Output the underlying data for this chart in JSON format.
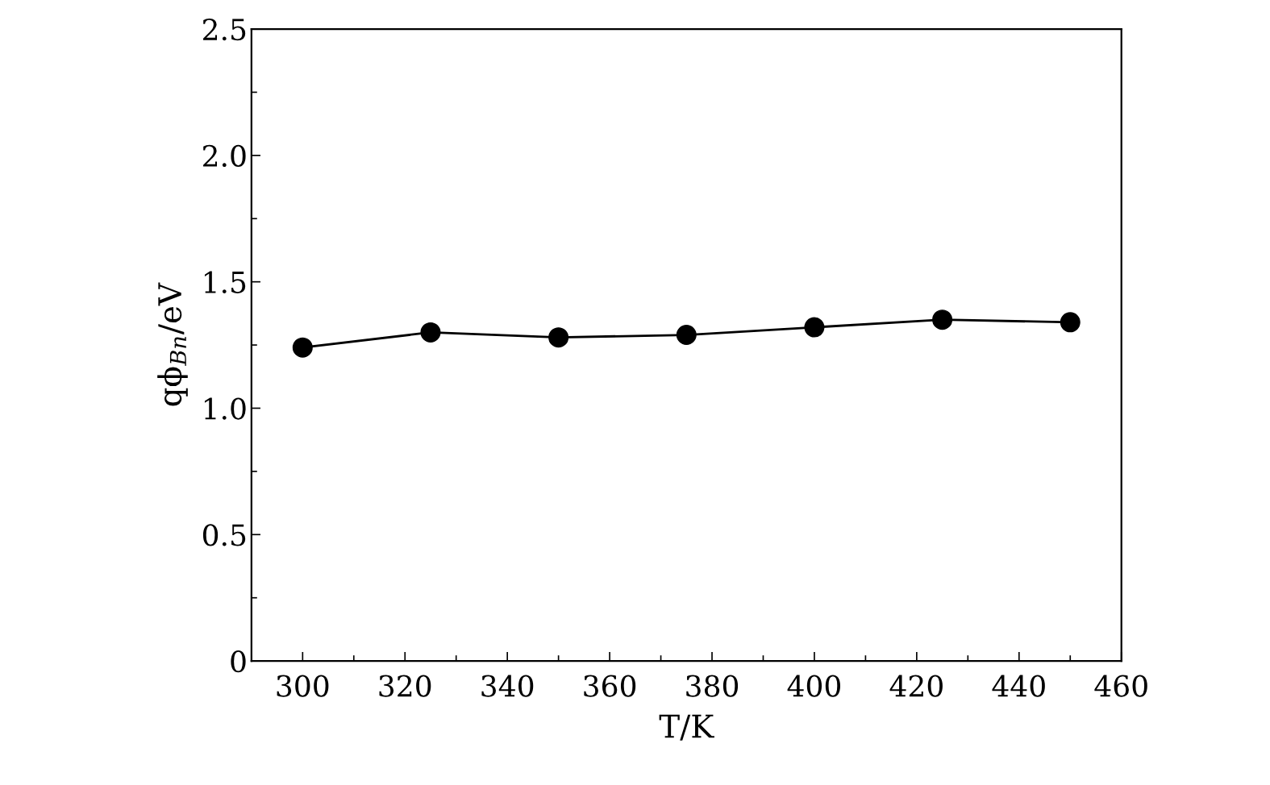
{
  "chart_data": {
    "type": "line",
    "xlabel": "T/K",
    "ylabel": "qϕ$_{Bn}$/eV",
    "x": [
      300,
      325,
      350,
      375,
      400,
      425,
      450
    ],
    "series": [
      {
        "color": "#000000",
        "values": [
          1.24,
          1.3,
          1.28,
          1.29,
          1.32,
          1.35,
          1.34
        ]
      }
    ],
    "marker": "circle",
    "line_style": "solid",
    "grid": false,
    "legend": false,
    "xlim": [
      290,
      460
    ],
    "xticks": [
      300,
      320,
      340,
      360,
      380,
      400,
      420,
      440,
      460
    ],
    "ylim": [
      0,
      2.5
    ],
    "yticks": [
      0,
      0.5,
      {
        "value": 1,
        "label": "1.0"
      },
      1.5,
      {
        "value": 2,
        "label": "2.0"
      },
      2.5
    ]
  }
}
